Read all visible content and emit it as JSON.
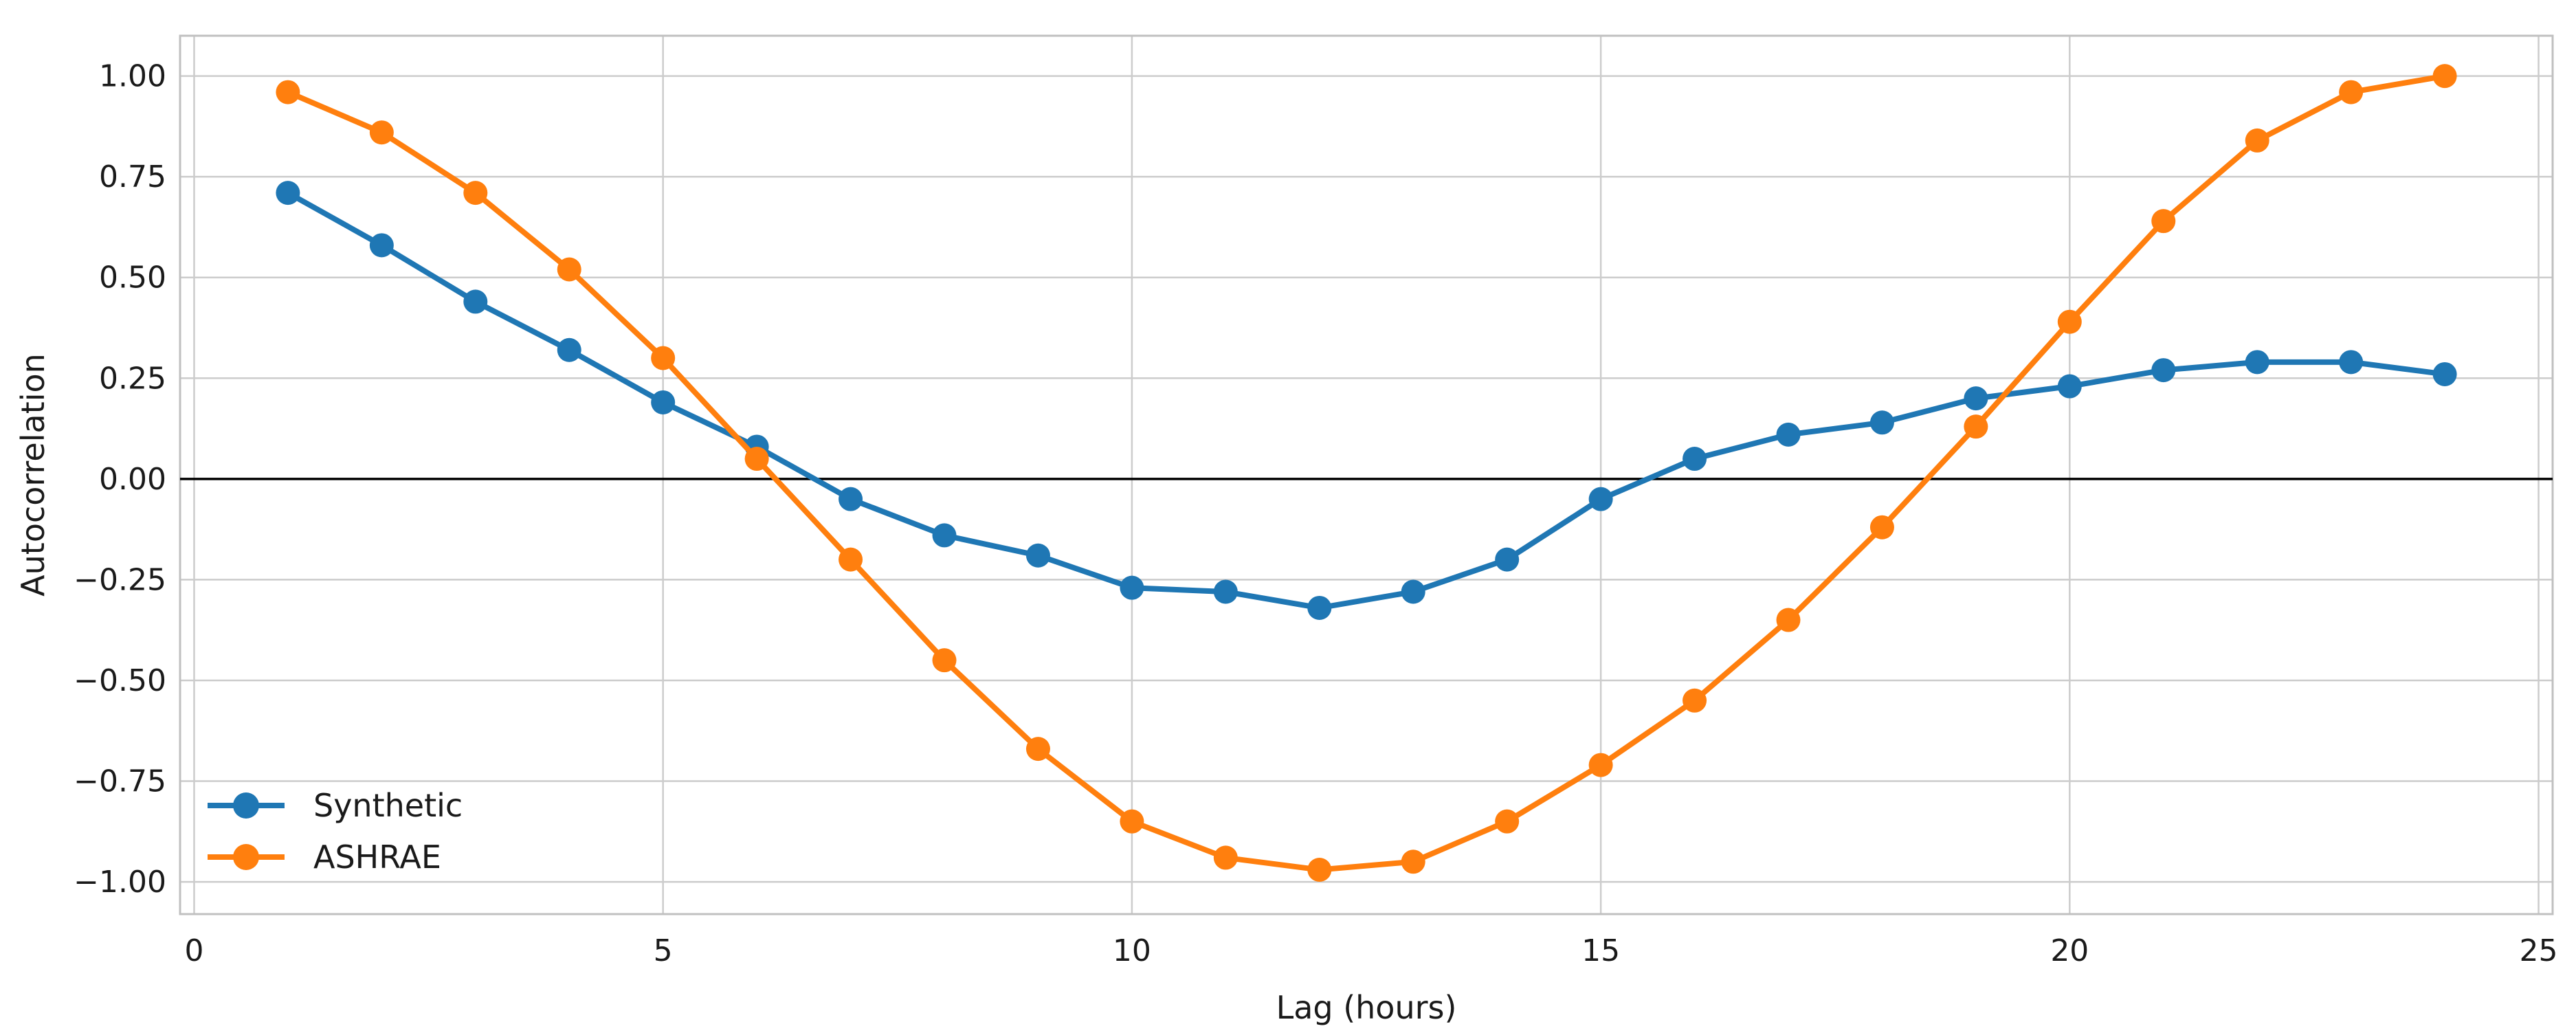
{
  "chart_data": {
    "type": "line",
    "title": "",
    "xlabel": "Lag (hours)",
    "ylabel": "Autocorrelation",
    "x": [
      1,
      2,
      3,
      4,
      5,
      6,
      7,
      8,
      9,
      10,
      11,
      12,
      13,
      14,
      15,
      16,
      17,
      18,
      19,
      20,
      21,
      22,
      23,
      24
    ],
    "series": [
      {
        "name": "Synthetic",
        "color": "#1f77b4",
        "values": [
          0.71,
          0.58,
          0.44,
          0.32,
          0.19,
          0.08,
          -0.05,
          -0.14,
          -0.19,
          -0.27,
          -0.28,
          -0.32,
          -0.28,
          -0.2,
          -0.05,
          0.05,
          0.11,
          0.14,
          0.2,
          0.23,
          0.27,
          0.29,
          0.29,
          0.26
        ]
      },
      {
        "name": "ASHRAE",
        "color": "#ff7f0e",
        "values": [
          0.96,
          0.86,
          0.71,
          0.52,
          0.3,
          0.05,
          -0.2,
          -0.45,
          -0.67,
          -0.85,
          -0.94,
          -0.97,
          -0.95,
          -0.85,
          -0.71,
          -0.55,
          -0.35,
          -0.12,
          0.13,
          0.39,
          0.64,
          0.84,
          0.96,
          1.0
        ]
      }
    ],
    "xlim": [
      -0.15,
      25.15
    ],
    "ylim": [
      -1.08,
      1.1
    ],
    "x_ticks": {
      "values": [
        0,
        5,
        10,
        15,
        20,
        25
      ],
      "labels": [
        "0",
        "5",
        "10",
        "15",
        "20",
        "25"
      ]
    },
    "y_ticks": {
      "values": [
        1.0,
        0.75,
        0.5,
        0.25,
        0.0,
        -0.25,
        -0.5,
        -0.75,
        -1.0
      ],
      "labels": [
        "1.00",
        "0.75",
        "0.50",
        "0.25",
        "0.00",
        "−0.25",
        "−0.50",
        "−0.75",
        "−1.00"
      ]
    },
    "grid": true,
    "zero_line": true,
    "legend_position": "lower-left",
    "legend_entries": [
      "Synthetic",
      "ASHRAE"
    ]
  },
  "colors": {
    "background": "#ffffff",
    "grid": "#cccccc",
    "spine": "#c0c0c0",
    "zero_line": "#000000",
    "text": "#1a1a1a"
  }
}
